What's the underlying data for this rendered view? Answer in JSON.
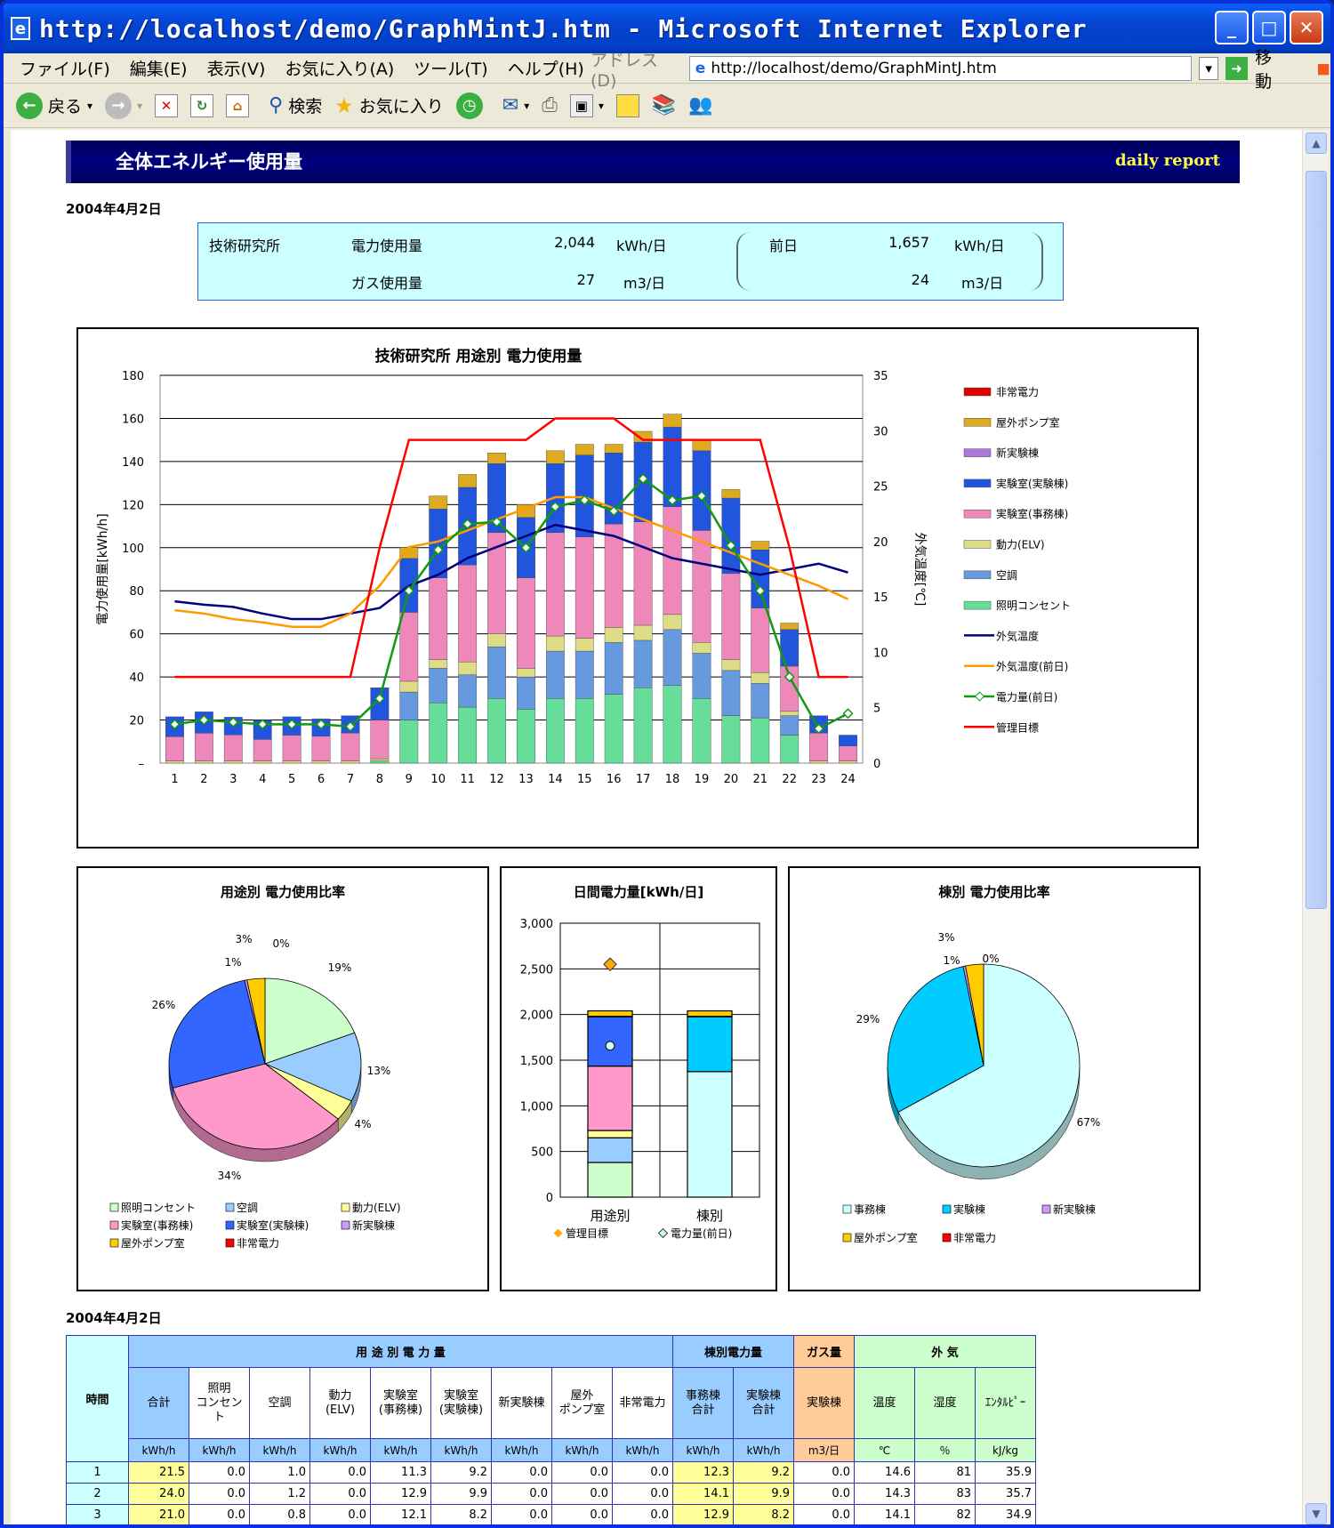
{
  "window": {
    "title": "http://localhost/demo/GraphMintJ.htm - Microsoft Internet Explorer"
  },
  "menu": [
    "ファイル(F)",
    "編集(E)",
    "表示(V)",
    "お気に入り(A)",
    "ツール(T)",
    "ヘルプ(H)"
  ],
  "address": {
    "label": "アドレス(D)",
    "url": "http://localhost/demo/GraphMintJ.htm",
    "go": "移動"
  },
  "toolbar": {
    "back": "戻る",
    "search": "検索",
    "favorites": "お気に入り"
  },
  "header": {
    "title": "全体エネルギー使用量",
    "right": "daily report"
  },
  "date1": "2004年4月2日",
  "date2": "2004年4月2日",
  "summary": {
    "site": "技術研究所",
    "elec_label": "電力使用量",
    "elec_value": "2,044",
    "elec_unit": "kWh/日",
    "gas_label": "ガス使用量",
    "gas_value": "27",
    "gas_unit": "m3/日",
    "prev_label": "前日",
    "prev_elec": "1,657",
    "prev_elec_unit": "kWh/日",
    "prev_gas": "24",
    "prev_gas_unit": "m3/日"
  },
  "chart_data": [
    {
      "type": "bar",
      "title": "技術研究所 用途別 電力使用量",
      "ylabel": "電力使用量[kWh/h]",
      "y2label": "外気温度[℃]",
      "ylim": [
        0,
        180
      ],
      "y2lim": [
        0,
        35
      ],
      "yticks": [
        "–",
        "20",
        "40",
        "60",
        "80",
        "100",
        "120",
        "140",
        "160",
        "180"
      ],
      "y2ticks": [
        "0",
        "5",
        "10",
        "15",
        "20",
        "25",
        "30",
        "35"
      ],
      "categories": [
        "1",
        "2",
        "3",
        "4",
        "5",
        "6",
        "7",
        "8",
        "9",
        "10",
        "11",
        "12",
        "13",
        "14",
        "15",
        "16",
        "17",
        "18",
        "19",
        "20",
        "21",
        "22",
        "23",
        "24"
      ],
      "series": [
        {
          "name": "照明コンセント",
          "color": "#66dd99",
          "values": [
            0,
            0,
            0,
            0,
            0,
            0,
            0,
            1,
            20,
            28,
            26,
            30,
            25,
            30,
            30,
            32,
            35,
            36,
            30,
            22,
            21,
            13,
            0,
            0
          ]
        },
        {
          "name": "空調",
          "color": "#6699dd",
          "values": [
            0,
            0,
            0,
            0,
            0,
            0,
            0,
            0,
            13,
            16,
            15,
            24,
            15,
            22,
            22,
            24,
            22,
            26,
            21,
            21,
            16,
            9,
            0,
            0
          ]
        },
        {
          "name": "動力(ELV)",
          "color": "#dddd88",
          "values": [
            1,
            1,
            1,
            1,
            1,
            1,
            1,
            1,
            5,
            4,
            6,
            6,
            4,
            7,
            6,
            7,
            7,
            7,
            5,
            5,
            5,
            2,
            1,
            1
          ]
        },
        {
          "name": "実験室(事務棟)",
          "color": "#ee88bb",
          "values": [
            11.3,
            12.9,
            12.1,
            10,
            12,
            11.5,
            13,
            18,
            32,
            38,
            45,
            47,
            42,
            48,
            47,
            48,
            48,
            50,
            52,
            40,
            30,
            21,
            13,
            7
          ]
        },
        {
          "name": "実験室(実験棟)",
          "color": "#2255dd",
          "values": [
            9.2,
            9.9,
            8.2,
            9,
            8.5,
            8,
            8,
            15,
            25,
            32,
            36,
            32,
            28,
            32,
            38,
            33,
            37,
            37,
            37,
            35,
            27,
            17,
            8,
            5
          ]
        },
        {
          "name": "新実験棟",
          "color": "#aa77dd",
          "values": [
            0,
            0,
            0,
            0,
            0,
            0,
            0,
            0,
            0,
            0,
            0,
            0,
            0,
            0,
            0,
            0,
            0,
            0,
            0,
            0,
            0,
            0,
            0,
            0
          ]
        },
        {
          "name": "屋外ポンプ室",
          "color": "#ddaa22",
          "values": [
            0,
            0,
            0,
            0,
            0,
            0,
            0,
            0,
            5,
            6,
            6,
            5,
            6,
            6,
            5,
            4,
            5,
            6,
            5,
            4,
            4,
            3,
            0,
            0
          ]
        },
        {
          "name": "非常電力",
          "color": "#dd0000",
          "values": [
            0,
            0,
            0,
            0,
            0,
            0,
            0,
            0,
            0,
            0,
            0,
            0,
            0,
            0,
            0,
            0,
            0,
            0,
            0,
            0,
            0,
            0,
            0,
            0
          ]
        }
      ],
      "lines": [
        {
          "name": "外気温度",
          "color": "#000080",
          "axis": "y2",
          "values": [
            14.6,
            14.3,
            14.1,
            13.5,
            13,
            13,
            13.5,
            14,
            16,
            17,
            18.5,
            19.5,
            20.5,
            21.5,
            21,
            20.5,
            19.5,
            18.5,
            18,
            17.5,
            17,
            17.5,
            18,
            17.2
          ]
        },
        {
          "name": "外気温度(前日)",
          "color": "#ff9900",
          "axis": "y2",
          "values": [
            13.8,
            13.5,
            13,
            12.7,
            12.3,
            12.3,
            13.5,
            16,
            19.5,
            20,
            21,
            22,
            23,
            24,
            24,
            23,
            22,
            21,
            20,
            19,
            18,
            17,
            16,
            14.8
          ]
        },
        {
          "name": "電力量(前日)",
          "color": "#119911",
          "axis": "y",
          "marker": true,
          "values": [
            18,
            20,
            19,
            18,
            18,
            18,
            17,
            30,
            80,
            99,
            111,
            112,
            100,
            119,
            122,
            117,
            132,
            122,
            124,
            101,
            80,
            40,
            16,
            23
          ]
        },
        {
          "name": "管理目標",
          "color": "#ff0000",
          "axis": "y",
          "values": [
            40,
            40,
            40,
            40,
            40,
            40,
            40,
            100,
            150,
            150,
            150,
            150,
            150,
            160,
            160,
            160,
            150,
            150,
            150,
            150,
            150,
            100,
            40,
            40
          ]
        }
      ],
      "legend": [
        "非常電力",
        "屋外ポンプ室",
        "新実験棟",
        "実験室(実験棟)",
        "実験室(事務棟)",
        "動力(ELV)",
        "空調",
        "照明コンセント",
        "外気温度",
        "外気温度(前日)",
        "電力量(前日)",
        "管理目標"
      ]
    },
    {
      "type": "pie",
      "title": "用途別 電力使用比率",
      "slices": [
        {
          "name": "照明コンセント",
          "value": 19,
          "label": "19%",
          "color": "#ccffcc"
        },
        {
          "name": "空調",
          "value": 13,
          "label": "13%",
          "color": "#99ccff"
        },
        {
          "name": "動力(ELV)",
          "value": 4,
          "label": "4%",
          "color": "#ffff99"
        },
        {
          "name": "実験室(事務棟)",
          "value": 34,
          "label": "34%",
          "color": "#ff99cc"
        },
        {
          "name": "実験室(実験棟)",
          "value": 26,
          "label": "26%",
          "color": "#3366ff"
        },
        {
          "name": "新実験棟",
          "value": 0.4,
          "label": "1%",
          "color": "#cc99ff"
        },
        {
          "name": "屋外ポンプ室",
          "value": 3,
          "label": "3%",
          "color": "#ffcc00"
        },
        {
          "name": "非常電力",
          "value": 0,
          "label": "0%",
          "color": "#ff0000"
        }
      ]
    },
    {
      "type": "bar",
      "title": "日間電力量[kWh/日]",
      "categories": [
        "用途別",
        "棟別"
      ],
      "ylim": [
        0,
        3000
      ],
      "yticks": [
        "0",
        "500",
        "1,000",
        "1,500",
        "2,000",
        "2,500",
        "3,000"
      ],
      "stacks": [
        [
          {
            "value": 380,
            "color": "#ccffcc"
          },
          {
            "value": 270,
            "color": "#99ccff"
          },
          {
            "value": 80,
            "color": "#ffff99"
          },
          {
            "value": 705,
            "color": "#ff99cc"
          },
          {
            "value": 540,
            "color": "#3366ff"
          },
          {
            "value": 5,
            "color": "#cc99ff"
          },
          {
            "value": 60,
            "color": "#ffcc00"
          }
        ],
        [
          {
            "value": 1375,
            "color": "#ccffff"
          },
          {
            "value": 600,
            "color": "#00ccff"
          },
          {
            "value": 5,
            "color": "#cc99ff"
          },
          {
            "value": 60,
            "color": "#ffcc00"
          }
        ]
      ],
      "markers": [
        {
          "name": "管理目標",
          "value": 2550,
          "color": "#ffaa00"
        },
        {
          "name": "電力量(前日)",
          "value": 1657,
          "color": "#ccffff"
        }
      ]
    },
    {
      "type": "pie",
      "title": "棟別 電力使用比率",
      "slices": [
        {
          "name": "事務棟",
          "value": 67,
          "label": "67%",
          "color": "#ccffff"
        },
        {
          "name": "実験棟",
          "value": 29,
          "label": "29%",
          "color": "#00ccff"
        },
        {
          "name": "新実験棟",
          "value": 0.4,
          "label": "1%",
          "color": "#cc99ff"
        },
        {
          "name": "屋外ポンプ室",
          "value": 3,
          "label": "3%",
          "color": "#ffcc00"
        },
        {
          "name": "非常電力",
          "value": 0,
          "label": "0%",
          "color": "#ff0000"
        }
      ]
    }
  ],
  "table": {
    "time": "時間",
    "use": "用 途 別 電 力 量",
    "bldg": "棟別電力量",
    "gas": "ガス量",
    "outside": "外 気",
    "cols": [
      "合計",
      "照明\nコンセント",
      "空調",
      "動力(ELV)",
      "実験室\n(事務棟)",
      "実験室\n(実験棟)",
      "新実験棟",
      "屋外\nポンプ室",
      "非常電力",
      "事務棟\n合計",
      "実験棟\n合計",
      "実験棟",
      "温度",
      "湿度",
      "ｴﾝﾀﾙﾋﾟｰ"
    ],
    "units": [
      "kWh/h",
      "kWh/h",
      "kWh/h",
      "kWh/h",
      "kWh/h",
      "kWh/h",
      "kWh/h",
      "kWh/h",
      "kWh/h",
      "kWh/h",
      "kWh/h",
      "m3/日",
      "℃",
      "％",
      "kJ/kg"
    ],
    "rows": [
      [
        "1",
        "21.5",
        "0.0",
        "1.0",
        "0.0",
        "11.3",
        "9.2",
        "0.0",
        "0.0",
        "0.0",
        "12.3",
        "9.2",
        "0.0",
        "14.6",
        "81",
        "35.9"
      ],
      [
        "2",
        "24.0",
        "0.0",
        "1.2",
        "0.0",
        "12.9",
        "9.9",
        "0.0",
        "0.0",
        "0.0",
        "14.1",
        "9.9",
        "0.0",
        "14.3",
        "83",
        "35.7"
      ],
      [
        "3",
        "21.0",
        "0.0",
        "0.8",
        "0.0",
        "12.1",
        "8.2",
        "0.0",
        "0.0",
        "0.0",
        "12.9",
        "8.2",
        "0.0",
        "14.1",
        "82",
        "34.9"
      ]
    ]
  }
}
